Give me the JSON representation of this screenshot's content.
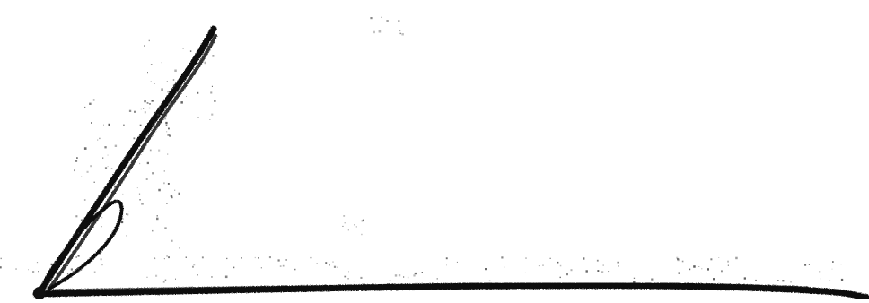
{
  "image": {
    "kind": "handwritten-signature-scan",
    "background_color": "#ffffff",
    "ink_color": "#111111",
    "noise_color": "#4a4a4a"
  }
}
